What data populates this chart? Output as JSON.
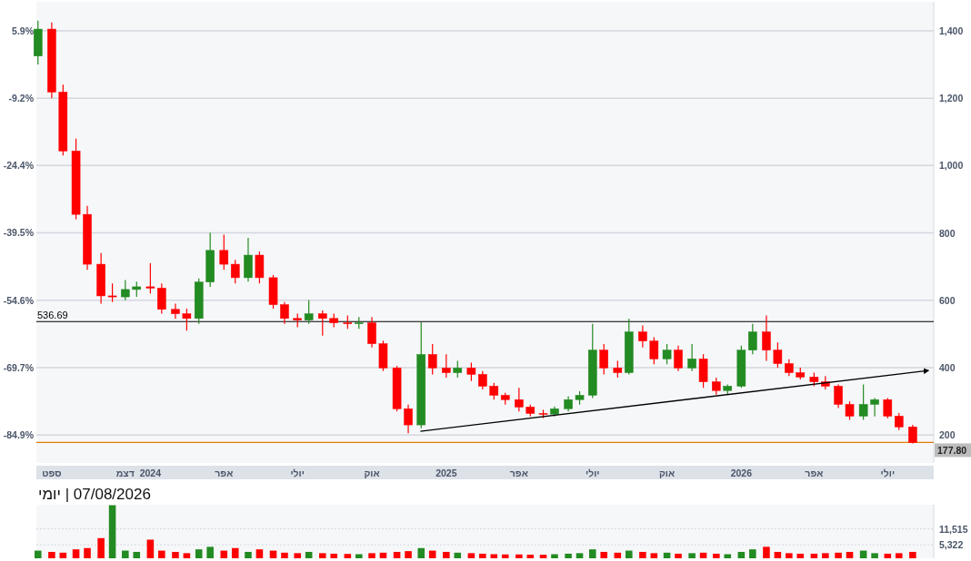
{
  "chart_data": [
    {
      "type": "candlestick",
      "x": [
        "2023-08-15",
        "2023-09-01",
        "2023-09-15",
        "2023-10-01",
        "2023-10-15",
        "2023-11-01",
        "2023-11-15",
        "2023-12-01",
        "2023-12-15",
        "2024-01-01",
        "2024-01-15",
        "2024-02-01",
        "2024-02-15",
        "2024-03-01",
        "2024-03-15",
        "2024-04-01",
        "2024-04-15",
        "2024-05-01",
        "2024-05-15",
        "2024-06-01",
        "2024-06-15",
        "2024-07-01",
        "2024-07-15",
        "2024-08-01",
        "2024-08-15",
        "2024-09-01",
        "2024-09-15",
        "2024-10-01",
        "2024-10-15",
        "2024-11-01",
        "2024-11-15",
        "2024-12-01",
        "2024-12-15",
        "2025-01-01",
        "2025-01-15",
        "2025-02-01",
        "2025-02-15",
        "2025-03-01",
        "2025-03-15",
        "2025-04-01",
        "2025-04-15",
        "2025-05-01",
        "2025-05-15",
        "2025-06-01",
        "2025-06-15",
        "2025-07-01",
        "2025-07-15",
        "2025-08-01",
        "2025-08-15",
        "2025-09-01",
        "2025-09-15",
        "2025-10-01",
        "2025-10-15",
        "2025-11-01",
        "2025-11-15",
        "2025-12-01",
        "2025-12-15",
        "2026-01-01",
        "2026-01-15",
        "2026-02-01",
        "2026-02-15",
        "2026-03-01",
        "2026-03-15",
        "2026-04-01",
        "2026-04-15",
        "2026-05-01",
        "2026-05-15",
        "2026-06-01",
        "2026-06-15",
        "2026-07-01",
        "2026-07-15",
        "2026-08-01"
      ],
      "ohlc": [
        [
          1325,
          1430,
          1300,
          1405
        ],
        [
          1405,
          1425,
          1200,
          1218
        ],
        [
          1218,
          1240,
          1030,
          1043
        ],
        [
          1043,
          1080,
          840,
          855
        ],
        [
          855,
          880,
          690,
          707
        ],
        [
          707,
          740,
          590,
          613
        ],
        [
          613,
          650,
          595,
          610
        ],
        [
          610,
          660,
          600,
          632
        ],
        [
          632,
          655,
          610,
          640
        ],
        [
          640,
          710,
          620,
          636
        ],
        [
          636,
          650,
          560,
          573
        ],
        [
          573,
          590,
          545,
          560
        ],
        [
          560,
          575,
          510,
          546
        ],
        [
          546,
          665,
          530,
          654
        ],
        [
          654,
          800,
          640,
          748
        ],
        [
          748,
          795,
          690,
          707
        ],
        [
          707,
          720,
          650,
          667
        ],
        [
          667,
          785,
          655,
          734
        ],
        [
          734,
          745,
          650,
          667
        ],
        [
          667,
          675,
          575,
          587
        ],
        [
          587,
          595,
          530,
          546
        ],
        [
          546,
          560,
          520,
          541
        ],
        [
          541,
          600,
          530,
          560
        ],
        [
          560,
          570,
          495,
          546
        ],
        [
          546,
          560,
          520,
          533
        ],
        [
          533,
          555,
          515,
          530
        ],
        [
          530,
          550,
          515,
          533
        ],
        [
          533,
          550,
          460,
          471
        ],
        [
          471,
          480,
          390,
          399
        ],
        [
          399,
          405,
          270,
          278
        ],
        [
          278,
          290,
          205,
          230
        ],
        [
          230,
          535,
          220,
          439
        ],
        [
          439,
          470,
          380,
          399
        ],
        [
          399,
          440,
          370,
          385
        ],
        [
          385,
          420,
          370,
          399
        ],
        [
          399,
          415,
          360,
          380
        ],
        [
          380,
          390,
          335,
          345
        ],
        [
          345,
          355,
          305,
          318
        ],
        [
          318,
          325,
          290,
          305
        ],
        [
          305,
          340,
          270,
          283
        ],
        [
          283,
          290,
          255,
          264
        ],
        [
          264,
          275,
          250,
          262
        ],
        [
          262,
          285,
          255,
          278
        ],
        [
          278,
          315,
          270,
          305
        ],
        [
          305,
          330,
          290,
          318
        ],
        [
          318,
          530,
          310,
          452
        ],
        [
          452,
          470,
          380,
          399
        ],
        [
          399,
          420,
          370,
          385
        ],
        [
          385,
          545,
          380,
          506
        ],
        [
          506,
          525,
          460,
          479
        ],
        [
          479,
          490,
          410,
          426
        ],
        [
          426,
          470,
          410,
          452
        ],
        [
          452,
          465,
          390,
          399
        ],
        [
          399,
          470,
          390,
          426
        ],
        [
          426,
          440,
          340,
          358
        ],
        [
          358,
          370,
          320,
          332
        ],
        [
          332,
          350,
          320,
          345
        ],
        [
          345,
          465,
          340,
          452
        ],
        [
          452,
          530,
          440,
          506
        ],
        [
          506,
          555,
          420,
          452
        ],
        [
          452,
          475,
          400,
          412
        ],
        [
          412,
          425,
          375,
          385
        ],
        [
          385,
          400,
          365,
          372
        ],
        [
          372,
          385,
          345,
          358
        ],
        [
          358,
          375,
          335,
          345
        ],
        [
          345,
          350,
          280,
          291
        ],
        [
          291,
          300,
          245,
          256
        ],
        [
          256,
          350,
          245,
          291
        ],
        [
          291,
          310,
          255,
          305
        ],
        [
          305,
          310,
          250,
          256
        ],
        [
          256,
          265,
          215,
          224
        ],
        [
          224,
          230,
          175,
          177.8
        ]
      ],
      "colors": [
        "#228b22",
        "#ff0000",
        "#ff0000",
        "#ff0000",
        "#ff0000",
        "#ff0000",
        "#ff0000",
        "#228b22",
        "#228b22",
        "#ff0000",
        "#ff0000",
        "#ff0000",
        "#ff0000",
        "#228b22",
        "#228b22",
        "#ff0000",
        "#ff0000",
        "#228b22",
        "#ff0000",
        "#ff0000",
        "#ff0000",
        "#ff0000",
        "#228b22",
        "#ff0000",
        "#ff0000",
        "#ff0000",
        "#228b22",
        "#ff0000",
        "#ff0000",
        "#ff0000",
        "#ff0000",
        "#228b22",
        "#ff0000",
        "#ff0000",
        "#228b22",
        "#ff0000",
        "#ff0000",
        "#ff0000",
        "#ff0000",
        "#ff0000",
        "#ff0000",
        "#ff0000",
        "#228b22",
        "#228b22",
        "#228b22",
        "#228b22",
        "#ff0000",
        "#ff0000",
        "#228b22",
        "#ff0000",
        "#ff0000",
        "#228b22",
        "#ff0000",
        "#228b22",
        "#ff0000",
        "#ff0000",
        "#228b22",
        "#228b22",
        "#228b22",
        "#ff0000",
        "#ff0000",
        "#ff0000",
        "#ff0000",
        "#ff0000",
        "#ff0000",
        "#ff0000",
        "#ff0000",
        "#228b22",
        "#228b22",
        "#ff0000",
        "#ff0000",
        "#ff0000"
      ],
      "xlim": [
        "2023-08-13",
        "2026-08-27"
      ],
      "xticks": [
        {
          "value": "2023-09-01",
          "label": "ספט"
        },
        {
          "value": "2023-12-01",
          "label": "דצמ"
        },
        {
          "value": "2024-01-01",
          "label": "2024"
        },
        {
          "value": "2024-04-01",
          "label": "אפר"
        },
        {
          "value": "2024-07-01",
          "label": "יולי"
        },
        {
          "value": "2024-10-01",
          "label": "אוק"
        },
        {
          "value": "2025-01-01",
          "label": "2025"
        },
        {
          "value": "2025-04-01",
          "label": "אפר"
        },
        {
          "value": "2025-07-01",
          "label": "יולי"
        },
        {
          "value": "2025-10-01",
          "label": "אוק"
        },
        {
          "value": "2026-01-01",
          "label": "2026"
        },
        {
          "value": "2026-04-01",
          "label": "אפר"
        },
        {
          "value": "2026-07-01",
          "label": "יולי"
        }
      ],
      "ylim": [
        117,
        1486
      ],
      "yticks": [
        {
          "value": 200,
          "label": "200"
        },
        {
          "value": 400,
          "label": "400"
        },
        {
          "value": 600,
          "label": "600"
        },
        {
          "value": 800,
          "label": "800"
        },
        {
          "value": 1000,
          "label": "1,000"
        },
        {
          "value": 1200,
          "label": "1,200"
        },
        {
          "value": 1400,
          "label": "1,400"
        }
      ],
      "y2lim": [
        -91.2,
        12.4
      ],
      "y2ticks": [
        {
          "value": -84.9,
          "label": "-84.9%"
        },
        {
          "value": -69.7,
          "label": "-69.7%"
        },
        {
          "value": -54.6,
          "label": "-54.6%"
        },
        {
          "value": -39.5,
          "label": "-39.5%"
        },
        {
          "value": -24.4,
          "label": "-24.4%"
        },
        {
          "value": -9.2,
          "label": "-9.2%"
        },
        {
          "value": 5.9,
          "label": "5.9%"
        }
      ],
      "grid": "y",
      "ref_lines": [
        {
          "axis": "y",
          "value": 536.69,
          "label": "536.69",
          "color": "#000000"
        },
        {
          "axis": "y",
          "value": 177.8,
          "label": "177.80",
          "color": "#e07b00"
        }
      ],
      "series": [
        {
          "type": "line",
          "x": [
            "2024-11-30",
            "2026-08-16"
          ],
          "values": [
            211,
            390
          ],
          "color": "#000000"
        }
      ]
    },
    {
      "type": "bar",
      "title": "07/08/2026 | יומי",
      "x": [
        "2023-08-15",
        "2023-09-01",
        "2023-09-15",
        "2023-10-01",
        "2023-10-15",
        "2023-11-01",
        "2023-11-15",
        "2023-12-01",
        "2023-12-15",
        "2024-01-01",
        "2024-01-15",
        "2024-02-01",
        "2024-02-15",
        "2024-03-01",
        "2024-03-15",
        "2024-04-01",
        "2024-04-15",
        "2024-05-01",
        "2024-05-15",
        "2024-06-01",
        "2024-06-15",
        "2024-07-01",
        "2024-07-15",
        "2024-08-01",
        "2024-08-15",
        "2024-09-01",
        "2024-09-15",
        "2024-10-01",
        "2024-10-15",
        "2024-11-01",
        "2024-11-15",
        "2024-12-01",
        "2024-12-15",
        "2025-01-01",
        "2025-01-15",
        "2025-02-01",
        "2025-02-15",
        "2025-03-01",
        "2025-03-15",
        "2025-04-01",
        "2025-04-15",
        "2025-05-01",
        "2025-05-15",
        "2025-06-01",
        "2025-06-15",
        "2025-07-01",
        "2025-07-15",
        "2025-08-01",
        "2025-08-15",
        "2025-09-01",
        "2025-09-15",
        "2025-10-01",
        "2025-10-15",
        "2025-11-01",
        "2025-11-15",
        "2025-12-01",
        "2025-12-15",
        "2026-01-01",
        "2026-01-15",
        "2026-02-01",
        "2026-02-15",
        "2026-03-01",
        "2026-03-15",
        "2026-04-01",
        "2026-04-15",
        "2026-05-01",
        "2026-05-15",
        "2026-06-01",
        "2026-06-15",
        "2026-07-01",
        "2026-07-15",
        "2026-08-01"
      ],
      "values": [
        3000,
        2500,
        2200,
        3500,
        4000,
        7900,
        20800,
        3000,
        2500,
        7300,
        3000,
        2500,
        2000,
        3500,
        4500,
        3000,
        4000,
        2500,
        3500,
        3000,
        2200,
        2000,
        2500,
        2000,
        1800,
        1700,
        1600,
        2000,
        2200,
        2500,
        2800,
        4000,
        3000,
        2500,
        2200,
        2000,
        1800,
        1600,
        1500,
        1500,
        1400,
        1400,
        1600,
        1800,
        2000,
        3500,
        2500,
        2200,
        3000,
        2500,
        2000,
        2200,
        1800,
        2000,
        2200,
        1800,
        1600,
        2500,
        3500,
        4500,
        2500,
        2000,
        1800,
        1800,
        2000,
        2200,
        2500,
        3000,
        2000,
        1800,
        2000,
        2500
      ],
      "colors": [
        "#228b22",
        "#ff0000",
        "#ff0000",
        "#ff0000",
        "#ff0000",
        "#ff0000",
        "#228b22",
        "#228b22",
        "#228b22",
        "#ff0000",
        "#ff0000",
        "#ff0000",
        "#ff0000",
        "#228b22",
        "#228b22",
        "#ff0000",
        "#ff0000",
        "#228b22",
        "#ff0000",
        "#ff0000",
        "#ff0000",
        "#ff0000",
        "#228b22",
        "#ff0000",
        "#ff0000",
        "#ff0000",
        "#228b22",
        "#ff0000",
        "#ff0000",
        "#ff0000",
        "#ff0000",
        "#228b22",
        "#ff0000",
        "#ff0000",
        "#228b22",
        "#ff0000",
        "#ff0000",
        "#ff0000",
        "#ff0000",
        "#ff0000",
        "#ff0000",
        "#ff0000",
        "#228b22",
        "#228b22",
        "#228b22",
        "#228b22",
        "#ff0000",
        "#ff0000",
        "#228b22",
        "#ff0000",
        "#ff0000",
        "#228b22",
        "#ff0000",
        "#228b22",
        "#ff0000",
        "#ff0000",
        "#228b22",
        "#228b22",
        "#228b22",
        "#ff0000",
        "#ff0000",
        "#ff0000",
        "#ff0000",
        "#ff0000",
        "#ff0000",
        "#ff0000",
        "#ff0000",
        "#228b22",
        "#228b22",
        "#ff0000",
        "#ff0000",
        "#ff0000"
      ],
      "xlim": [
        "2023-08-13",
        "2026-08-27"
      ],
      "ylim": [
        0,
        21000
      ],
      "yticks": [
        {
          "value": 5322,
          "label": "5,322"
        },
        {
          "value": 11515,
          "label": "11,515"
        }
      ],
      "tick_labels": "y",
      "grid": "y"
    }
  ]
}
